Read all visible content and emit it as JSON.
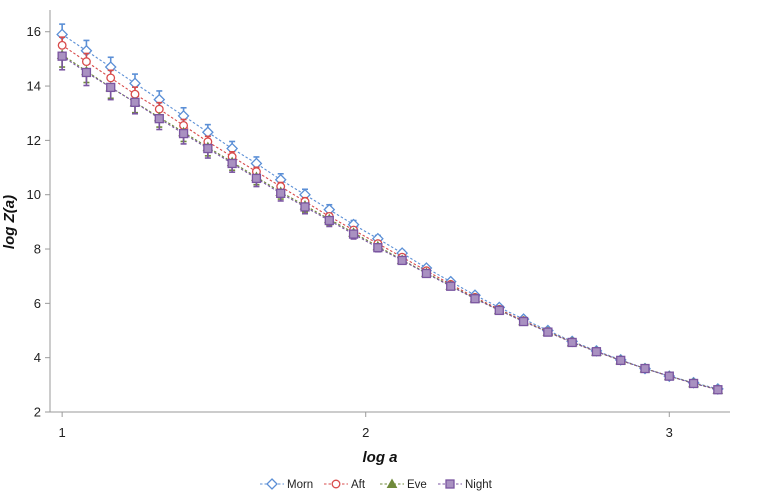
{
  "chart_data": {
    "type": "line",
    "title": "",
    "xlabel": "log a",
    "ylabel": "log Z(a)",
    "xlim": [
      0.96,
      3.2
    ],
    "ylim": [
      2,
      16.8
    ],
    "xticks": [
      1,
      2,
      3
    ],
    "yticks": [
      2,
      4,
      6,
      8,
      10,
      12,
      14,
      16
    ],
    "grid": false,
    "legend_position": "bottom",
    "x": [
      1.0,
      1.08,
      1.16,
      1.24,
      1.32,
      1.4,
      1.48,
      1.56,
      1.64,
      1.72,
      1.8,
      1.88,
      1.96,
      2.04,
      2.12,
      2.2,
      2.28,
      2.36,
      2.44,
      2.52,
      2.6,
      2.68,
      2.76,
      2.84,
      2.92,
      3.0,
      3.08,
      3.16
    ],
    "series": [
      {
        "name": "Morn",
        "color": "#5b8fd6",
        "marker": "diamond",
        "values": [
          15.9,
          15.3,
          14.7,
          14.1,
          13.5,
          12.9,
          12.3,
          11.7,
          11.15,
          10.55,
          10.0,
          9.45,
          8.9,
          8.38,
          7.85,
          7.3,
          6.8,
          6.3,
          5.85,
          5.42,
          5.0,
          4.6,
          4.25,
          3.92,
          3.6,
          3.32,
          3.08,
          2.85
        ],
        "errors": [
          0.38,
          0.38,
          0.36,
          0.34,
          0.32,
          0.3,
          0.28,
          0.26,
          0.24,
          0.22,
          0.2,
          0.18,
          0.15,
          0.12,
          0.1,
          0.08,
          0.07,
          0.06,
          0.05,
          0.05,
          0.05,
          0.05,
          0.05,
          0.05,
          0.05,
          0.05,
          0.05,
          0.05
        ]
      },
      {
        "name": "Aft",
        "color": "#d84b4b",
        "marker": "circle",
        "values": [
          15.5,
          14.9,
          14.3,
          13.7,
          13.15,
          12.55,
          11.95,
          11.4,
          10.85,
          10.3,
          9.75,
          9.2,
          8.7,
          8.2,
          7.7,
          7.2,
          6.7,
          6.22,
          5.78,
          5.36,
          4.96,
          4.58,
          4.23,
          3.9,
          3.6,
          3.32,
          3.06,
          2.83
        ],
        "errors": [
          0.3,
          0.3,
          0.28,
          0.26,
          0.24,
          0.22,
          0.2,
          0.18,
          0.16,
          0.15,
          0.14,
          0.12,
          0.1,
          0.09,
          0.08,
          0.07,
          0.06,
          0.05,
          0.05,
          0.05,
          0.05,
          0.05,
          0.05,
          0.05,
          0.05,
          0.05,
          0.05,
          0.05
        ]
      },
      {
        "name": "Eve",
        "color": "#6f8a3a",
        "marker": "triangle",
        "values": [
          15.15,
          14.55,
          13.95,
          13.4,
          12.85,
          12.3,
          11.75,
          11.2,
          10.65,
          10.1,
          9.6,
          9.1,
          8.6,
          8.1,
          7.6,
          7.12,
          6.65,
          6.18,
          5.75,
          5.34,
          4.95,
          4.57,
          4.22,
          3.9,
          3.6,
          3.32,
          3.06,
          2.82
        ],
        "errors": [
          0.45,
          0.42,
          0.4,
          0.38,
          0.36,
          0.34,
          0.32,
          0.3,
          0.28,
          0.26,
          0.24,
          0.22,
          0.18,
          0.15,
          0.12,
          0.1,
          0.08,
          0.07,
          0.06,
          0.05,
          0.05,
          0.05,
          0.05,
          0.05,
          0.05,
          0.05,
          0.05,
          0.05
        ]
      },
      {
        "name": "Night",
        "color": "#7a55a0",
        "marker": "square",
        "values": [
          15.1,
          14.5,
          13.95,
          13.4,
          12.8,
          12.25,
          11.7,
          11.15,
          10.6,
          10.05,
          9.55,
          9.05,
          8.55,
          8.05,
          7.58,
          7.1,
          6.63,
          6.17,
          5.74,
          5.33,
          4.94,
          4.56,
          4.22,
          3.9,
          3.6,
          3.32,
          3.05,
          2.82
        ],
        "errors": [
          0.5,
          0.48,
          0.45,
          0.42,
          0.4,
          0.38,
          0.35,
          0.32,
          0.3,
          0.28,
          0.25,
          0.22,
          0.18,
          0.15,
          0.12,
          0.1,
          0.08,
          0.07,
          0.06,
          0.05,
          0.05,
          0.05,
          0.05,
          0.05,
          0.05,
          0.05,
          0.05,
          0.05
        ]
      }
    ]
  }
}
